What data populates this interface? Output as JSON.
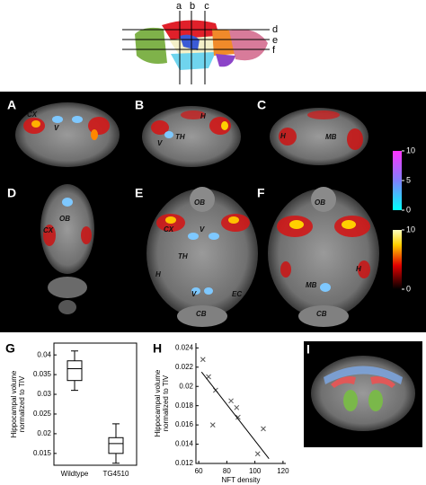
{
  "schematic": {
    "labels": [
      "a",
      "b",
      "c",
      "d",
      "e",
      "f"
    ]
  },
  "brain_panels": [
    {
      "label": "A",
      "regions": [
        "CX",
        "V"
      ]
    },
    {
      "label": "B",
      "regions": [
        "TH",
        "H",
        "V"
      ]
    },
    {
      "label": "C",
      "regions": [
        "H",
        "MB"
      ]
    },
    {
      "label": "D",
      "regions": [
        "OB",
        "CX"
      ]
    },
    {
      "label": "E",
      "regions": [
        "OB",
        "CX",
        "V",
        "TH",
        "H",
        "V",
        "EC",
        "CB"
      ]
    },
    {
      "label": "F",
      "regions": [
        "OB",
        "H",
        "MB",
        "CB"
      ]
    }
  ],
  "colorbars": [
    {
      "range": [
        0,
        10
      ],
      "ticks": [
        0,
        5,
        10
      ]
    },
    {
      "range": [
        0,
        10
      ],
      "ticks": [
        0,
        10
      ]
    }
  ],
  "other_panels": {
    "G": "G",
    "H": "H",
    "I": "I"
  },
  "chart_data": [
    {
      "type": "box",
      "ylabel": [
        "Hippocampal volume",
        "normalized to TIV"
      ],
      "categories": [
        "Wildtype",
        "TG4510"
      ],
      "min": [
        0.031,
        0.0125
      ],
      "q1": [
        0.0335,
        0.015
      ],
      "median": [
        0.0365,
        0.0175
      ],
      "q3": [
        0.0385,
        0.019
      ],
      "max": [
        0.041,
        0.0225
      ],
      "color": "#000000",
      "ylim": [
        0.012,
        0.043
      ],
      "yticks": [
        0.015,
        0.02,
        0.025,
        0.03,
        0.035,
        0.04
      ]
    },
    {
      "type": "scatter",
      "ylabel": [
        "Hippocampal volume",
        "normalized to TIV"
      ],
      "xlabel": "NFT density",
      "x": [
        63,
        67,
        72,
        70,
        83,
        87,
        88,
        102,
        106
      ],
      "values": [
        0.0228,
        0.021,
        0.0196,
        0.016,
        0.0185,
        0.0178,
        0.0168,
        0.013,
        0.0156
      ],
      "color": "#555555",
      "trendline": {
        "x": [
          62,
          110
        ],
        "y": [
          0.0215,
          0.0125
        ]
      },
      "xlim": [
        58,
        122
      ],
      "xticks": [
        60,
        80,
        100,
        120
      ],
      "ylim": [
        0.012,
        0.0245
      ],
      "yticks": [
        0.012,
        0.014,
        0.016,
        0.018,
        0.02,
        0.022,
        0.024
      ]
    }
  ]
}
